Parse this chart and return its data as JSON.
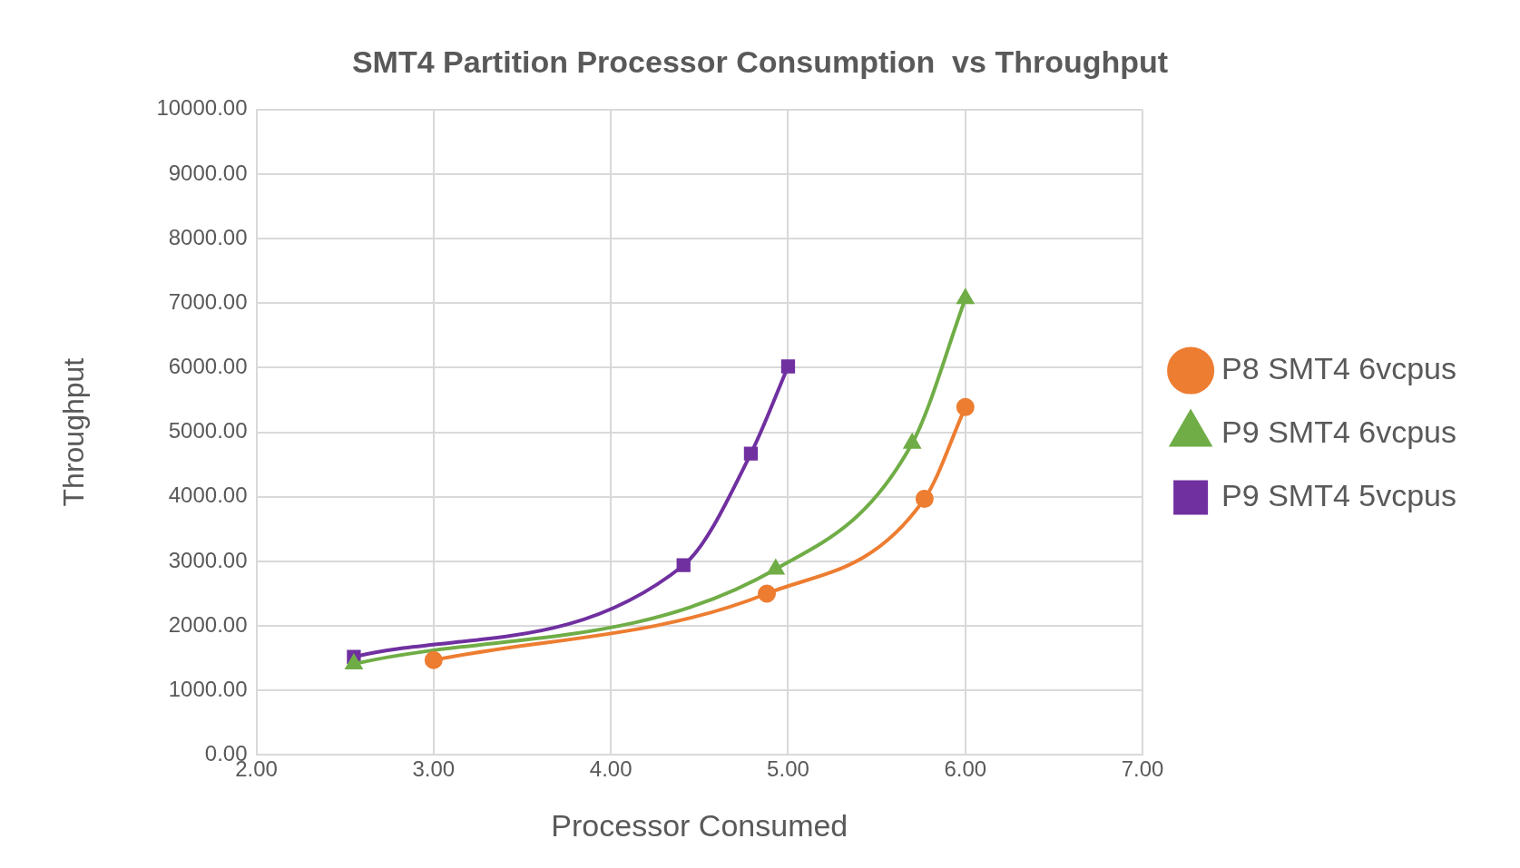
{
  "chart_data": {
    "type": "line",
    "title": "SMT4 Partition Processor Consumption  vs Throughput",
    "xlabel": "Processor Consumed",
    "ylabel": "Throughput",
    "xlim": [
      2,
      7
    ],
    "xticks": [
      {
        "value": 2,
        "label": "2.00"
      },
      {
        "value": 3,
        "label": "3.00"
      },
      {
        "value": 4,
        "label": "4.00"
      },
      {
        "value": 5,
        "label": "5.00"
      },
      {
        "value": 6,
        "label": "6.00"
      },
      {
        "value": 7,
        "label": "7.00"
      }
    ],
    "ylim": [
      0,
      10000
    ],
    "yticks": [
      {
        "value": 0,
        "label": "0.00"
      },
      {
        "value": 1000,
        "label": "1000.00"
      },
      {
        "value": 2000,
        "label": "2000.00"
      },
      {
        "value": 3000,
        "label": "3000.00"
      },
      {
        "value": 4000,
        "label": "4000.00"
      },
      {
        "value": 5000,
        "label": "5000.00"
      },
      {
        "value": 6000,
        "label": "6000.00"
      },
      {
        "value": 7000,
        "label": "7000.00"
      },
      {
        "value": 8000,
        "label": "8000.00"
      },
      {
        "value": 9000,
        "label": "9000.00"
      },
      {
        "value": 10000,
        "label": "10000.00"
      }
    ],
    "grid": true,
    "legend": "right",
    "series": [
      {
        "name": "P8 SMT4 6vcpus",
        "color": "#ed7d31",
        "marker": "circle",
        "x": [
          3.0,
          4.88,
          5.77,
          6.0
        ],
        "values": [
          1470,
          2500,
          3970,
          5390
        ]
      },
      {
        "name": "P9 SMT4 6vcpus",
        "color": "#70ad47",
        "marker": "triangle",
        "x": [
          2.55,
          4.93,
          5.7,
          6.0
        ],
        "values": [
          1410,
          2880,
          4830,
          7070
        ]
      },
      {
        "name": "P9 SMT4 5vcpus",
        "color": "#7030a0",
        "marker": "square",
        "x": [
          2.55,
          4.41,
          4.79,
          5.0
        ],
        "values": [
          1520,
          2940,
          4670,
          6020
        ]
      }
    ]
  }
}
